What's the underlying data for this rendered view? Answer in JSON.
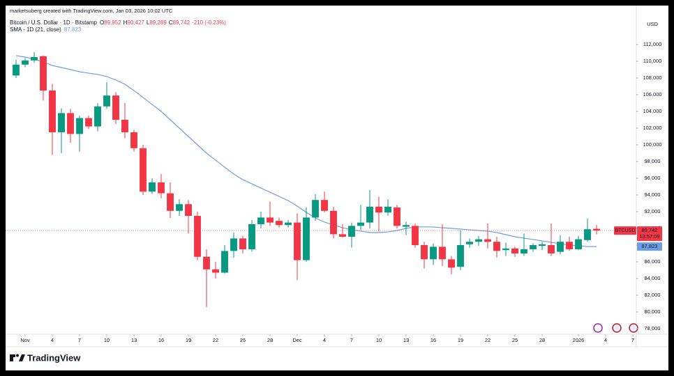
{
  "chart_data": {
    "type": "candlestick",
    "watermark": "marketsuberg created with TradingView.com, Jan 03, 2026 10:02 UTC",
    "symbol": "Bitcoin / U.S. Dollar · 1D · Bitstamp",
    "ohlc_legend": [
      {
        "key": "O",
        "value": "89,952"
      },
      {
        "key": "H",
        "value": "90,427"
      },
      {
        "key": "L",
        "value": "89,289"
      },
      {
        "key": "C",
        "value": "89,742"
      }
    ],
    "change": "-210 (-0.23%)",
    "currency": "USD",
    "up_color": "#089981",
    "down_color": "#f23645",
    "x": [
      "2025-10-31",
      "2025-11-01",
      "2025-11-02",
      "2025-11-03",
      "2025-11-04",
      "2025-11-05",
      "2025-11-06",
      "2025-11-07",
      "2025-11-08",
      "2025-11-09",
      "2025-11-10",
      "2025-11-11",
      "2025-11-12",
      "2025-11-13",
      "2025-11-14",
      "2025-11-15",
      "2025-11-16",
      "2025-11-17",
      "2025-11-18",
      "2025-11-19",
      "2025-11-20",
      "2025-11-21",
      "2025-11-22",
      "2025-11-23",
      "2025-11-24",
      "2025-11-25",
      "2025-11-26",
      "2025-11-27",
      "2025-11-28",
      "2025-11-29",
      "2025-11-30",
      "2025-12-01",
      "2025-12-02",
      "2025-12-03",
      "2025-12-04",
      "2025-12-05",
      "2025-12-06",
      "2025-12-07",
      "2025-12-08",
      "2025-12-09",
      "2025-12-10",
      "2025-12-11",
      "2025-12-12",
      "2025-12-13",
      "2025-12-14",
      "2025-12-15",
      "2025-12-16",
      "2025-12-17",
      "2025-12-18",
      "2025-12-19",
      "2025-12-20",
      "2025-12-21",
      "2025-12-22",
      "2025-12-23",
      "2025-12-24",
      "2025-12-25",
      "2025-12-26",
      "2025-12-27",
      "2025-12-28",
      "2025-12-29",
      "2025-12-30",
      "2025-12-31",
      "2026-01-01",
      "2026-01-02",
      "2026-01-03"
    ],
    "open": [
      108300,
      109600,
      110100,
      110600,
      106500,
      101500,
      103800,
      101300,
      103200,
      102200,
      104600,
      105900,
      103000,
      101500,
      99600,
      94400,
      95500,
      94200,
      92100,
      92900,
      91500,
      86600,
      85100,
      84700,
      87300,
      88800,
      87500,
      90500,
      91300,
      90900,
      90400,
      90700,
      86200,
      91300,
      93400,
      92100,
      89300,
      89000,
      90300,
      90700,
      92600,
      91900,
      92500,
      90200,
      90300,
      88000,
      86300,
      87800,
      86300,
      85400,
      88100,
      88400,
      88700,
      88400,
      87400,
      87600,
      87000,
      87500,
      87900,
      88000,
      87200,
      88400,
      87500,
      88600,
      89952
    ],
    "high": [
      110200,
      110400,
      111100,
      110700,
      107300,
      104400,
      104300,
      103500,
      103500,
      105000,
      107500,
      106300,
      105000,
      101800,
      100000,
      96000,
      96500,
      95500,
      93500,
      93400,
      92000,
      87500,
      86000,
      88000,
      89500,
      89100,
      91000,
      92000,
      93200,
      91300,
      91000,
      91800,
      92500,
      94100,
      94400,
      92600,
      90500,
      90700,
      92800,
      94600,
      93800,
      93500,
      92800,
      90800,
      90600,
      88400,
      88200,
      90500,
      86700,
      89800,
      88800,
      89100,
      90600,
      89000,
      88300,
      87800,
      89400,
      88200,
      88400,
      90600,
      89200,
      89000,
      89100,
      91200,
      90427
    ],
    "low": [
      108000,
      109300,
      109800,
      105300,
      98800,
      99000,
      100250,
      99200,
      101900,
      101600,
      104300,
      102500,
      100800,
      99200,
      94000,
      94100,
      93600,
      91250,
      91500,
      89400,
      86200,
      80600,
      84000,
      84600,
      86500,
      87000,
      87200,
      90000,
      90300,
      90100,
      90100,
      83800,
      86000,
      90900,
      91900,
      88800,
      88900,
      87700,
      89800,
      90000,
      89600,
      91500,
      90000,
      89200,
      87700,
      85200,
      85600,
      85500,
      84500,
      85000,
      87700,
      87900,
      87600,
      86500,
      86700,
      86600,
      86700,
      87200,
      87400,
      86700,
      86900,
      87300,
      87400,
      88400,
      89289
    ],
    "close": [
      109600,
      110100,
      110500,
      106500,
      101500,
      103800,
      101300,
      103200,
      102200,
      104600,
      105900,
      103000,
      101500,
      99600,
      94400,
      95500,
      94200,
      92100,
      92900,
      91500,
      86600,
      85100,
      84700,
      87300,
      88800,
      87500,
      90500,
      91300,
      90700,
      90400,
      90700,
      86200,
      91300,
      93400,
      92100,
      89300,
      89000,
      90300,
      90700,
      92600,
      91900,
      92600,
      90300,
      90400,
      88000,
      86300,
      87800,
      86300,
      85300,
      88000,
      88400,
      88700,
      88400,
      87300,
      87600,
      87000,
      87500,
      88000,
      88100,
      87000,
      88400,
      87500,
      88700,
      89900,
      89742
    ],
    "series": [
      {
        "name": "SMA · 1D (21, close)",
        "color": "#6d9fe0",
        "last_label": "87,823",
        "values": [
          110670,
          110500,
          110250,
          109920,
          109500,
          109250,
          109000,
          108750,
          108580,
          108420,
          108170,
          107750,
          107250,
          106500,
          105670,
          104830,
          104000,
          103000,
          102000,
          101000,
          100000,
          99000,
          98170,
          97330,
          96500,
          95830,
          95330,
          94830,
          94330,
          93830,
          93330,
          92670,
          91920,
          91250,
          90750,
          90420,
          90080,
          89830,
          89670,
          89500,
          89500,
          89580,
          89750,
          90000,
          90170,
          90170,
          90170,
          90080,
          90000,
          89920,
          89830,
          89750,
          89670,
          89500,
          89250,
          89000,
          88830,
          88670,
          88500,
          88330,
          88170,
          88000,
          87920,
          87830,
          87823
        ]
      }
    ],
    "price_tags": {
      "symbol": "BTCUSD",
      "last": "89,742",
      "countdown": "13:57:09"
    },
    "xlim": [
      "2025-10-30",
      "2026-01-07"
    ],
    "ylim": [
      77000,
      115500
    ],
    "yticks": [
      {
        "value": 78000,
        "label": "78,000"
      },
      {
        "value": 80000,
        "label": "80,000"
      },
      {
        "value": 82000,
        "label": "82,000"
      },
      {
        "value": 84000,
        "label": "84,000"
      },
      {
        "value": 86000,
        "label": "86,000"
      },
      {
        "value": 88000,
        "label": "88,000"
      },
      {
        "value": 90000,
        "label": "90,000"
      },
      {
        "value": 92000,
        "label": "92,000"
      },
      {
        "value": 94000,
        "label": "94,000"
      },
      {
        "value": 96000,
        "label": "96,000"
      },
      {
        "value": 98000,
        "label": "98,000"
      },
      {
        "value": 100000,
        "label": "100,000"
      },
      {
        "value": 102000,
        "label": "102,000"
      },
      {
        "value": 104000,
        "label": "104,000"
      },
      {
        "value": 106000,
        "label": "106,000"
      },
      {
        "value": 108000,
        "label": "108,000"
      },
      {
        "value": 110000,
        "label": "110,000"
      },
      {
        "value": 112000,
        "label": "112,000"
      }
    ],
    "xticks": [
      {
        "value": "2025-11-01",
        "label": "Nov"
      },
      {
        "value": "2025-11-04",
        "label": "4"
      },
      {
        "value": "2025-11-07",
        "label": "7"
      },
      {
        "value": "2025-11-10",
        "label": "10"
      },
      {
        "value": "2025-11-13",
        "label": "13"
      },
      {
        "value": "2025-11-16",
        "label": "16"
      },
      {
        "value": "2025-11-19",
        "label": "19"
      },
      {
        "value": "2025-11-22",
        "label": "22"
      },
      {
        "value": "2025-11-25",
        "label": "25"
      },
      {
        "value": "2025-11-28",
        "label": "28"
      },
      {
        "value": "2025-12-01",
        "label": "Dec"
      },
      {
        "value": "2025-12-04",
        "label": "4"
      },
      {
        "value": "2025-12-07",
        "label": "7"
      },
      {
        "value": "2025-12-10",
        "label": "10"
      },
      {
        "value": "2025-12-13",
        "label": "13"
      },
      {
        "value": "2025-12-16",
        "label": "16"
      },
      {
        "value": "2025-12-19",
        "label": "19"
      },
      {
        "value": "2025-12-22",
        "label": "22"
      },
      {
        "value": "2025-12-25",
        "label": "25"
      },
      {
        "value": "2025-12-28",
        "label": "28"
      },
      {
        "value": "2026-01-01",
        "label": "2026"
      },
      {
        "value": "2026-01-04",
        "label": "4"
      },
      {
        "value": "2026-01-07",
        "label": "7"
      }
    ],
    "brand": "TradingView"
  }
}
